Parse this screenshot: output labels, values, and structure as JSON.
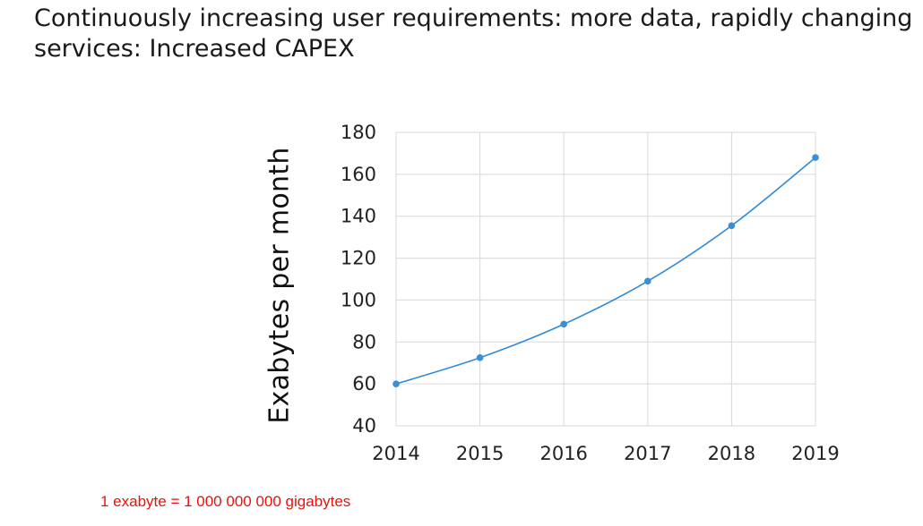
{
  "slide": {
    "title": "Continuously increasing user requirements: more data, rapidly changing services: Increased CAPEX",
    "footnote": "1 exabyte = 1 000 000 000 gigabytes"
  },
  "chart_data": {
    "type": "line",
    "title": "",
    "xlabel": "",
    "ylabel": "Exabytes per month",
    "x": [
      2014,
      2015,
      2016,
      2017,
      2018,
      2019
    ],
    "series": [
      {
        "values": [
          60,
          72.5,
          88.5,
          109,
          135.5,
          168
        ],
        "color": "#2f8ad8"
      }
    ],
    "ylim": [
      40,
      180
    ],
    "yticks": [
      40,
      60,
      80,
      100,
      120,
      140,
      160,
      180
    ],
    "grid": true,
    "legend": "none",
    "colors": {
      "grid": "#d9d9d9",
      "line": "#2f8ad8",
      "marker": "#3b8fd6"
    }
  }
}
